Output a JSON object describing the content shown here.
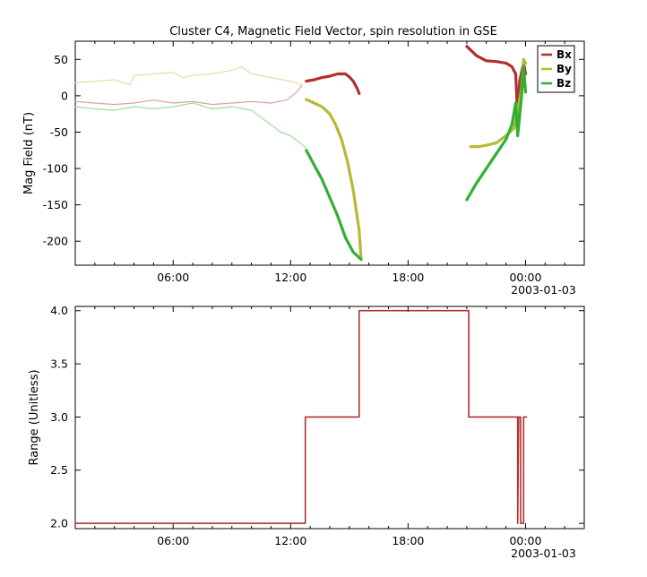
{
  "chart_data": [
    {
      "type": "line",
      "title": "Cluster C4, Magnetic Field Vector, spin resolution in GSE",
      "ylabel": "Mag Field (nT)",
      "xlabel": "",
      "x_unit": "hours from 2003-01-02 00:00",
      "xlim": [
        1.0,
        27.0
      ],
      "ylim": [
        -233,
        75
      ],
      "x_tick_labels": [
        {
          "x": 6,
          "label": "06:00"
        },
        {
          "x": 12,
          "label": "12:00"
        },
        {
          "x": 18,
          "label": "18:00"
        },
        {
          "x": 24,
          "label": "00:00",
          "sublabel": "2003-01-03"
        }
      ],
      "y_ticks": [
        50,
        0,
        -50,
        -100,
        -150,
        -200
      ],
      "y_tick_labels": [
        "50",
        "0",
        "-50",
        "-100",
        "-150",
        "-200"
      ],
      "legend": {
        "position": "top-right",
        "entries": [
          "Bx",
          "By",
          "Bz"
        ]
      },
      "grid": false,
      "series": [
        {
          "name": "Bx",
          "color": "#b03030",
          "segments": [
            {
              "faded": true,
              "points": [
                [
                  1.0,
                  -8
                ],
                [
                  2.0,
                  -10
                ],
                [
                  3.0,
                  -12
                ],
                [
                  4.0,
                  -10
                ],
                [
                  5.0,
                  -6
                ],
                [
                  6.0,
                  -10
                ],
                [
                  7.0,
                  -8
                ],
                [
                  8.0,
                  -12
                ],
                [
                  9.0,
                  -10
                ],
                [
                  10.0,
                  -8
                ],
                [
                  11.0,
                  -10
                ],
                [
                  11.8,
                  -6
                ],
                [
                  12.3,
                  5
                ],
                [
                  12.6,
                  15
                ]
              ]
            },
            {
              "faded": false,
              "points": [
                [
                  12.8,
                  20
                ],
                [
                  13.2,
                  22
                ],
                [
                  13.6,
                  25
                ],
                [
                  14.0,
                  27
                ],
                [
                  14.4,
                  30
                ],
                [
                  14.8,
                  30
                ],
                [
                  15.0,
                  26
                ],
                [
                  15.2,
                  20
                ],
                [
                  15.4,
                  10
                ],
                [
                  15.5,
                  3
                ]
              ]
            },
            {
              "faded": false,
              "points": [
                [
                  21.0,
                  68
                ],
                [
                  21.5,
                  55
                ],
                [
                  22.0,
                  48
                ],
                [
                  22.5,
                  47
                ],
                [
                  23.0,
                  45
                ],
                [
                  23.3,
                  40
                ],
                [
                  23.5,
                  30
                ],
                [
                  23.6,
                  -30
                ],
                [
                  23.7,
                  20
                ],
                [
                  23.9,
                  45
                ],
                [
                  24.0,
                  30
                ]
              ]
            }
          ]
        },
        {
          "name": "By",
          "color": "#b8b838",
          "segments": [
            {
              "faded": true,
              "points": [
                [
                  1.0,
                  18
                ],
                [
                  2.0,
                  20
                ],
                [
                  3.0,
                  22
                ],
                [
                  3.8,
                  15
                ],
                [
                  4.0,
                  28
                ],
                [
                  5.0,
                  30
                ],
                [
                  6.0,
                  32
                ],
                [
                  6.5,
                  25
                ],
                [
                  7.0,
                  28
                ],
                [
                  8.0,
                  30
                ],
                [
                  9.0,
                  35
                ],
                [
                  9.5,
                  40
                ],
                [
                  10.0,
                  30
                ],
                [
                  11.0,
                  25
                ],
                [
                  12.0,
                  20
                ],
                [
                  12.6,
                  15
                ]
              ]
            },
            {
              "faded": false,
              "points": [
                [
                  12.8,
                  -5
                ],
                [
                  13.2,
                  -10
                ],
                [
                  13.6,
                  -15
                ],
                [
                  14.0,
                  -25
                ],
                [
                  14.3,
                  -40
                ],
                [
                  14.6,
                  -60
                ],
                [
                  14.9,
                  -90
                ],
                [
                  15.2,
                  -130
                ],
                [
                  15.5,
                  -185
                ],
                [
                  15.6,
                  -225
                ]
              ]
            },
            {
              "faded": false,
              "points": [
                [
                  21.2,
                  -70
                ],
                [
                  21.6,
                  -70
                ],
                [
                  22.0,
                  -68
                ],
                [
                  22.5,
                  -65
                ],
                [
                  23.0,
                  -55
                ],
                [
                  23.4,
                  -45
                ],
                [
                  23.6,
                  -20
                ],
                [
                  23.8,
                  10
                ],
                [
                  23.9,
                  50
                ],
                [
                  24.0,
                  45
                ]
              ]
            }
          ]
        },
        {
          "name": "Bz",
          "color": "#30b030",
          "segments": [
            {
              "faded": true,
              "points": [
                [
                  1.0,
                  -15
                ],
                [
                  2.0,
                  -18
                ],
                [
                  3.0,
                  -20
                ],
                [
                  4.0,
                  -15
                ],
                [
                  5.0,
                  -18
                ],
                [
                  6.0,
                  -15
                ],
                [
                  7.0,
                  -10
                ],
                [
                  8.0,
                  -18
                ],
                [
                  9.0,
                  -15
                ],
                [
                  10.0,
                  -20
                ],
                [
                  10.5,
                  -30
                ],
                [
                  11.0,
                  -40
                ],
                [
                  11.5,
                  -50
                ],
                [
                  12.0,
                  -55
                ],
                [
                  12.5,
                  -65
                ],
                [
                  12.8,
                  -72
                ]
              ]
            },
            {
              "faded": false,
              "points": [
                [
                  12.8,
                  -75
                ],
                [
                  13.2,
                  -95
                ],
                [
                  13.6,
                  -115
                ],
                [
                  14.0,
                  -140
                ],
                [
                  14.4,
                  -165
                ],
                [
                  14.8,
                  -195
                ],
                [
                  15.2,
                  -215
                ],
                [
                  15.6,
                  -225
                ]
              ]
            },
            {
              "faded": false,
              "points": [
                [
                  21.0,
                  -143
                ],
                [
                  21.5,
                  -120
                ],
                [
                  22.0,
                  -100
                ],
                [
                  22.5,
                  -80
                ],
                [
                  23.0,
                  -60
                ],
                [
                  23.3,
                  -40
                ],
                [
                  23.5,
                  -10
                ],
                [
                  23.6,
                  -55
                ],
                [
                  23.8,
                  0
                ],
                [
                  23.9,
                  40
                ],
                [
                  24.0,
                  5
                ]
              ]
            }
          ]
        }
      ]
    },
    {
      "type": "line",
      "title": "",
      "ylabel": "Range (Unitless)",
      "xlabel": "",
      "x_unit": "hours from 2003-01-02 00:00",
      "xlim": [
        1.0,
        27.0
      ],
      "ylim": [
        1.95,
        4.04
      ],
      "x_tick_labels": [
        {
          "x": 6,
          "label": "06:00"
        },
        {
          "x": 12,
          "label": "12:00"
        },
        {
          "x": 18,
          "label": "18:00"
        },
        {
          "x": 24,
          "label": "00:00",
          "sublabel": "2003-01-03"
        }
      ],
      "y_ticks": [
        4.0,
        3.5,
        3.0,
        2.5,
        2.0
      ],
      "y_tick_labels": [
        "4.0",
        "3.5",
        "3.0",
        "2.5",
        "2.0"
      ],
      "grid": false,
      "series": [
        {
          "color": "#b03030",
          "points": [
            [
              1.0,
              2.0
            ],
            [
              12.75,
              2.0
            ],
            [
              12.75,
              3.0
            ],
            [
              15.5,
              3.0
            ],
            [
              15.5,
              4.0
            ],
            [
              21.1,
              4.0
            ],
            [
              21.1,
              3.0
            ],
            [
              23.6,
              3.0
            ],
            [
              23.6,
              2.0
            ],
            [
              23.65,
              3.0
            ],
            [
              23.75,
              3.0
            ],
            [
              23.75,
              2.0
            ],
            [
              23.9,
              2.0
            ],
            [
              23.9,
              3.0
            ],
            [
              24.05,
              3.0
            ]
          ]
        }
      ]
    }
  ]
}
